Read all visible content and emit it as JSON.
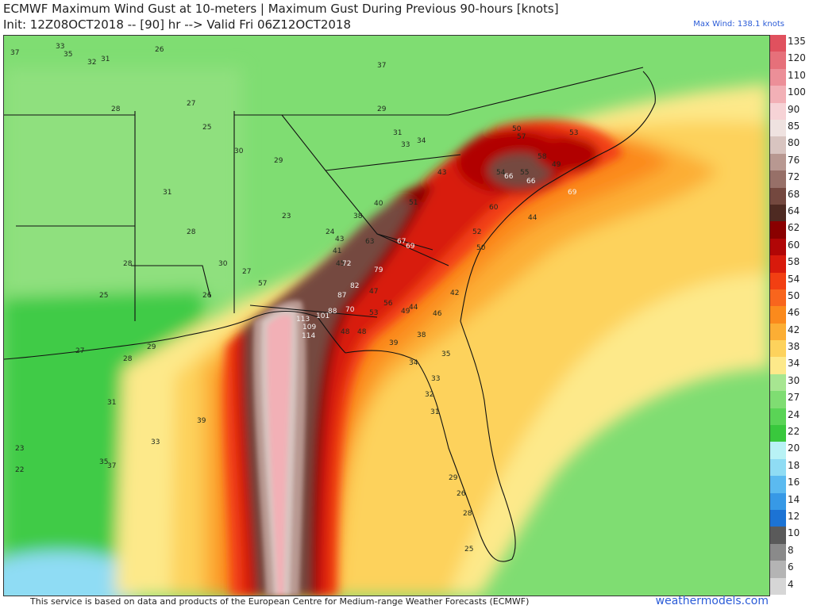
{
  "header": {
    "title_line1": "ECMWF Maximum Wind Gust at 10-meters | Maximum Gust During Previous 90-hours [knots]",
    "title_line2": "Init: 12Z08OCT2018 -- [90] hr --> Valid Fri 06Z12OCT2018",
    "max_wind": "Max Wind: 138.1 knots"
  },
  "footer": {
    "credit": "This service is based on data and products of the European Centre for Medium-range Weather Forecasts (ECMWF)",
    "brand": "weathermodels.com"
  },
  "legend": {
    "items": [
      {
        "label": "135",
        "color": "#e0515e"
      },
      {
        "label": "120",
        "color": "#e6707a"
      },
      {
        "label": "110",
        "color": "#ec8f98"
      },
      {
        "label": "100",
        "color": "#f2b0b6"
      },
      {
        "label": "90",
        "color": "#f6d3d6"
      },
      {
        "label": "85",
        "color": "#efe2e0"
      },
      {
        "label": "80",
        "color": "#d8c4c0"
      },
      {
        "label": "76",
        "color": "#b89891"
      },
      {
        "label": "72",
        "color": "#977068"
      },
      {
        "label": "68",
        "color": "#74483f"
      },
      {
        "label": "64",
        "color": "#4e2a22"
      },
      {
        "label": "62",
        "color": "#8a0000"
      },
      {
        "label": "60",
        "color": "#b10606"
      },
      {
        "label": "58",
        "color": "#d81a0c"
      },
      {
        "label": "54",
        "color": "#f23f12"
      },
      {
        "label": "50",
        "color": "#f8651d"
      },
      {
        "label": "46",
        "color": "#fb8a1c"
      },
      {
        "label": "42",
        "color": "#fcae34"
      },
      {
        "label": "38",
        "color": "#fdd25c"
      },
      {
        "label": "34",
        "color": "#fde98a"
      },
      {
        "label": "30",
        "color": "#a7e691"
      },
      {
        "label": "27",
        "color": "#7fdd72"
      },
      {
        "label": "24",
        "color": "#5ad456"
      },
      {
        "label": "22",
        "color": "#39c83d"
      },
      {
        "label": "20",
        "color": "#b8f2f5"
      },
      {
        "label": "18",
        "color": "#8fdcf4"
      },
      {
        "label": "16",
        "color": "#5bbaf0"
      },
      {
        "label": "14",
        "color": "#3799e6"
      },
      {
        "label": "12",
        "color": "#1c73d4"
      },
      {
        "label": "10",
        "color": "#5a5a5a"
      },
      {
        "label": "8",
        "color": "#8a8a8a"
      },
      {
        "label": "6",
        "color": "#b4b4b4"
      },
      {
        "label": "4",
        "color": "#d6d6d6"
      }
    ]
  },
  "stations": [
    {
      "v": "37"
    },
    {
      "v": "33"
    },
    {
      "v": "35"
    },
    {
      "v": "32"
    },
    {
      "v": "31"
    },
    {
      "v": "28"
    },
    {
      "v": "26"
    },
    {
      "v": "27"
    },
    {
      "v": "25"
    },
    {
      "v": "30"
    },
    {
      "v": "29"
    },
    {
      "v": "23"
    },
    {
      "v": "24"
    },
    {
      "v": "31"
    },
    {
      "v": "28"
    },
    {
      "v": "30"
    },
    {
      "v": "27"
    },
    {
      "v": "26"
    },
    {
      "v": "28"
    },
    {
      "v": "25"
    },
    {
      "v": "27"
    },
    {
      "v": "28"
    },
    {
      "v": "29"
    },
    {
      "v": "31"
    },
    {
      "v": "33"
    },
    {
      "v": "35"
    },
    {
      "v": "37"
    },
    {
      "v": "29"
    },
    {
      "v": "31"
    },
    {
      "v": "33"
    },
    {
      "v": "34"
    },
    {
      "v": "37"
    },
    {
      "v": "40"
    },
    {
      "v": "38"
    },
    {
      "v": "43"
    },
    {
      "v": "45"
    },
    {
      "v": "41"
    },
    {
      "v": "47"
    },
    {
      "v": "51"
    },
    {
      "v": "57"
    },
    {
      "v": "63"
    },
    {
      "v": "67"
    },
    {
      "v": "69"
    },
    {
      "v": "72"
    },
    {
      "v": "79"
    },
    {
      "v": "82"
    },
    {
      "v": "87"
    },
    {
      "v": "88"
    },
    {
      "v": "101"
    },
    {
      "v": "113"
    },
    {
      "v": "109"
    },
    {
      "v": "114"
    },
    {
      "v": "70"
    },
    {
      "v": "56"
    },
    {
      "v": "53"
    },
    {
      "v": "49"
    },
    {
      "v": "44"
    },
    {
      "v": "46"
    },
    {
      "v": "48"
    },
    {
      "v": "39"
    },
    {
      "v": "38"
    },
    {
      "v": "34"
    },
    {
      "v": "33"
    },
    {
      "v": "35"
    },
    {
      "v": "32"
    },
    {
      "v": "31"
    },
    {
      "v": "29"
    },
    {
      "v": "26"
    },
    {
      "v": "25"
    },
    {
      "v": "28"
    },
    {
      "v": "54"
    },
    {
      "v": "55"
    },
    {
      "v": "58"
    },
    {
      "v": "57"
    },
    {
      "v": "60"
    },
    {
      "v": "66"
    },
    {
      "v": "66"
    },
    {
      "v": "69"
    },
    {
      "v": "50"
    },
    {
      "v": "53"
    },
    {
      "v": "49"
    },
    {
      "v": "44"
    },
    {
      "v": "42"
    },
    {
      "v": "43"
    },
    {
      "v": "48"
    },
    {
      "v": "52"
    },
    {
      "v": "50"
    },
    {
      "v": "23"
    },
    {
      "v": "22"
    },
    {
      "v": "39"
    }
  ]
}
